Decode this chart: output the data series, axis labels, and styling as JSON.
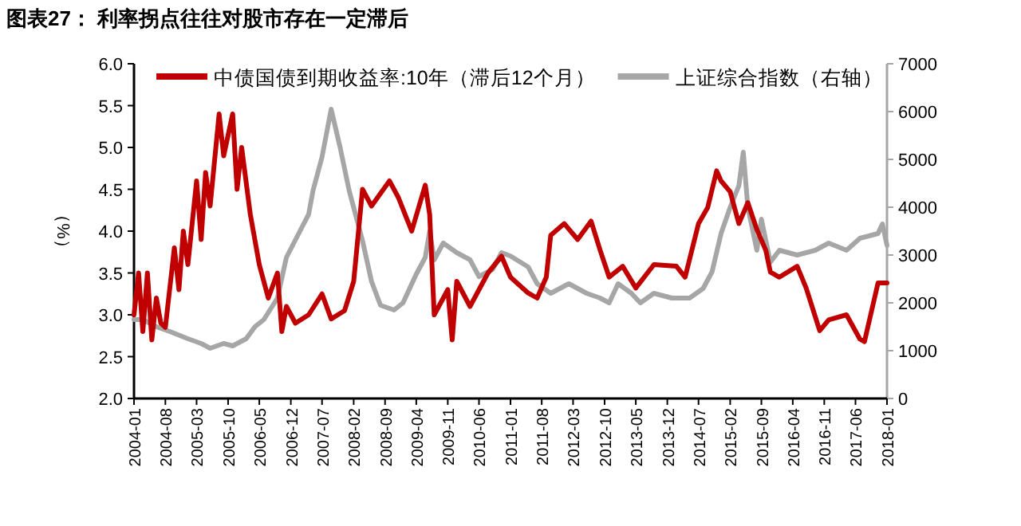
{
  "chart_data": {
    "type": "line",
    "title": "图表27：  利率拐点往往对股市存在一定滞后",
    "ylabel": "（%）",
    "xlim": [
      "2004-01",
      "2018-01"
    ],
    "xticks": [
      "2004-01",
      "2004-08",
      "2005-03",
      "2005-10",
      "2006-05",
      "2006-12",
      "2007-07",
      "2008-02",
      "2008-09",
      "2009-04",
      "2009-11",
      "2010-06",
      "2011-01",
      "2011-08",
      "2012-03",
      "2012-10",
      "2013-05",
      "2013-12",
      "2014-07",
      "2015-02",
      "2015-09",
      "2016-04",
      "2016-11",
      "2017-06",
      "2018-01"
    ],
    "ylim": [
      2.0,
      6.0
    ],
    "yticks": [
      {
        "value": 2.0,
        "label": "2.0"
      },
      {
        "value": 2.5,
        "label": "2.5"
      },
      {
        "value": 3.0,
        "label": "3.0"
      },
      {
        "value": 3.5,
        "label": "3.5"
      },
      {
        "value": 4.0,
        "label": "4.0"
      },
      {
        "value": 4.5,
        "label": "4.5"
      },
      {
        "value": 5.0,
        "label": "5.0"
      },
      {
        "value": 5.5,
        "label": "5.5"
      },
      {
        "value": 6.0,
        "label": "6.0"
      }
    ],
    "y2lim": [
      0,
      7000
    ],
    "y2ticks": [
      0,
      1000,
      2000,
      3000,
      4000,
      5000,
      6000,
      7000
    ],
    "legend": "top",
    "grid": false,
    "series": [
      {
        "name": "中债国债到期收益率:10年（滞后12个月）",
        "color": "#c00000",
        "x": [
          "2004-01",
          "2004-02",
          "2004-03",
          "2004-04",
          "2004-05",
          "2004-06",
          "2004-07",
          "2004-08",
          "2004-10",
          "2004-11",
          "2004-12",
          "2005-01",
          "2005-03",
          "2005-04",
          "2005-05",
          "2005-06",
          "2005-08",
          "2005-09",
          "2005-11",
          "2005-12",
          "2006-01",
          "2006-03",
          "2006-05",
          "2006-07",
          "2006-09",
          "2006-10",
          "2006-11",
          "2007-01",
          "2007-04",
          "2007-07",
          "2007-09",
          "2007-12",
          "2008-02",
          "2008-04",
          "2008-06",
          "2008-10",
          "2008-12",
          "2009-03",
          "2009-06",
          "2009-07",
          "2009-08",
          "2009-11",
          "2009-12",
          "2010-01",
          "2010-04",
          "2010-06",
          "2010-08",
          "2010-11",
          "2011-01",
          "2011-05",
          "2011-07",
          "2011-09",
          "2011-10",
          "2012-01",
          "2012-04",
          "2012-07",
          "2012-09",
          "2012-11",
          "2013-02",
          "2013-05",
          "2013-09",
          "2014-02",
          "2014-04",
          "2014-07",
          "2014-09",
          "2014-11",
          "2014-12",
          "2015-02",
          "2015-04",
          "2015-06",
          "2015-08",
          "2015-10",
          "2015-11",
          "2016-01",
          "2016-05",
          "2016-07",
          "2016-10",
          "2016-12",
          "2017-04",
          "2017-07",
          "2017-08",
          "2017-11",
          "2018-01"
        ],
        "values": [
          3.0,
          3.5,
          2.8,
          3.5,
          2.7,
          3.2,
          2.9,
          2.85,
          3.8,
          3.3,
          4.0,
          3.6,
          4.6,
          3.9,
          4.7,
          4.3,
          5.4,
          4.9,
          5.4,
          4.5,
          5.0,
          4.2,
          3.6,
          3.2,
          3.5,
          2.8,
          3.1,
          2.9,
          3.0,
          3.25,
          2.95,
          3.05,
          3.4,
          4.5,
          4.3,
          4.6,
          4.4,
          4.0,
          4.55,
          4.2,
          3.0,
          3.3,
          2.7,
          3.4,
          3.1,
          3.3,
          3.5,
          3.7,
          3.45,
          3.26,
          3.2,
          3.45,
          3.95,
          4.09,
          3.9,
          4.12,
          3.77,
          3.45,
          3.58,
          3.32,
          3.6,
          3.58,
          3.45,
          4.09,
          4.28,
          4.72,
          4.6,
          4.47,
          4.09,
          4.34,
          4.02,
          3.77,
          3.51,
          3.45,
          3.58,
          3.32,
          2.81,
          2.94,
          3.0,
          2.71,
          2.68,
          3.38,
          3.38
        ]
      },
      {
        "name": "上证综合指数（右轴）",
        "color": "#a6a6a6",
        "axis": "y2",
        "x": [
          "2004-01",
          "2004-03",
          "2004-06",
          "2004-09",
          "2005-01",
          "2005-04",
          "2005-06",
          "2005-09",
          "2005-11",
          "2006-02",
          "2006-04",
          "2006-06",
          "2006-09",
          "2006-11",
          "2007-02",
          "2007-04",
          "2007-05",
          "2007-07",
          "2007-09",
          "2007-11",
          "2008-01",
          "2008-04",
          "2008-06",
          "2008-08",
          "2008-11",
          "2009-01",
          "2009-04",
          "2009-06",
          "2009-07",
          "2009-08",
          "2009-10",
          "2010-01",
          "2010-04",
          "2010-06",
          "2010-09",
          "2010-11",
          "2011-01",
          "2011-05",
          "2011-07",
          "2011-10",
          "2012-02",
          "2012-06",
          "2012-09",
          "2012-11",
          "2013-01",
          "2013-04",
          "2013-06",
          "2013-09",
          "2014-01",
          "2014-05",
          "2014-08",
          "2014-10",
          "2014-12",
          "2015-02",
          "2015-04",
          "2015-05",
          "2015-06",
          "2015-08",
          "2015-09",
          "2015-11",
          "2016-01",
          "2016-05",
          "2016-09",
          "2016-12",
          "2017-04",
          "2017-07",
          "2017-11",
          "2017-12",
          "2018-01"
        ],
        "values": [
          1650,
          1650,
          1500,
          1400,
          1250,
          1150,
          1050,
          1150,
          1100,
          1250,
          1500,
          1650,
          2100,
          2950,
          3500,
          3850,
          4350,
          5050,
          6050,
          5250,
          4350,
          3300,
          2450,
          1950,
          1850,
          2000,
          2600,
          2950,
          3500,
          2900,
          3250,
          3050,
          2900,
          2550,
          2700,
          3050,
          2980,
          2750,
          2400,
          2200,
          2400,
          2200,
          2100,
          2000,
          2400,
          2200,
          2000,
          2200,
          2100,
          2100,
          2300,
          2650,
          3450,
          4000,
          4450,
          5150,
          4000,
          3100,
          3750,
          2850,
          3100,
          3000,
          3100,
          3250,
          3100,
          3350,
          3450,
          3650,
          3200
        ]
      }
    ]
  }
}
